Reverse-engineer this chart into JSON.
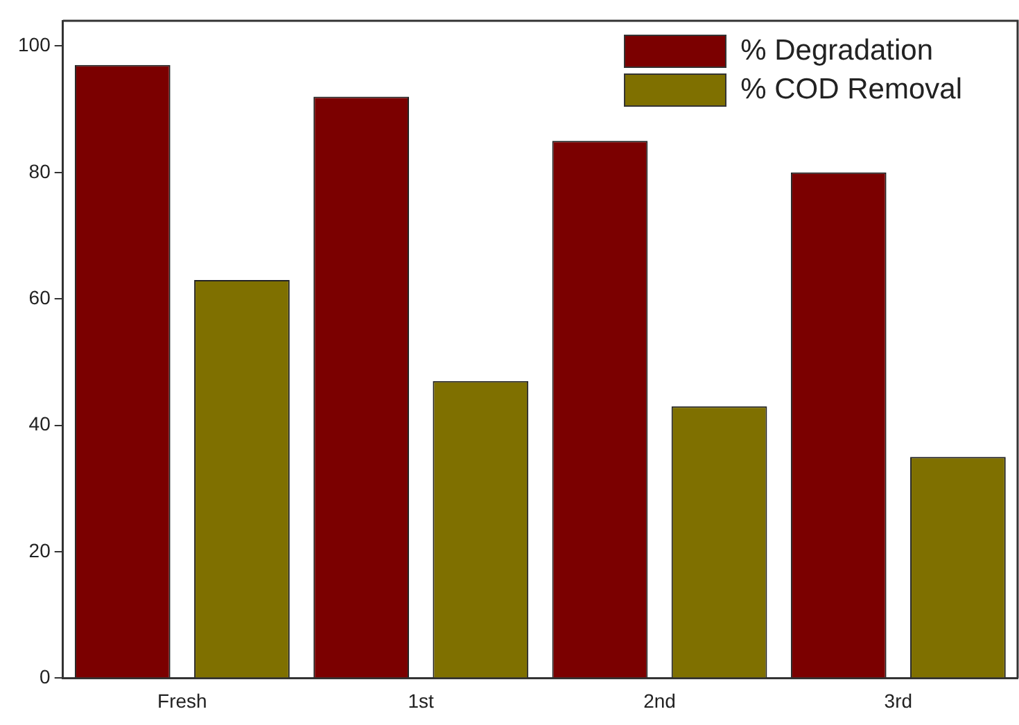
{
  "chart_data": {
    "type": "bar",
    "categories": [
      "Fresh",
      "1st",
      "2nd",
      "3rd"
    ],
    "series": [
      {
        "name": "% Degradation",
        "color": "#7b0000",
        "values": [
          97,
          92,
          85,
          80
        ]
      },
      {
        "name": "% COD Removal",
        "color": "#7f7000",
        "values": [
          63,
          47,
          43,
          35
        ]
      }
    ],
    "ylim": [
      0,
      104
    ],
    "yticks": [
      0,
      20,
      40,
      60,
      80,
      100
    ],
    "grid": false,
    "legend": "top right"
  }
}
